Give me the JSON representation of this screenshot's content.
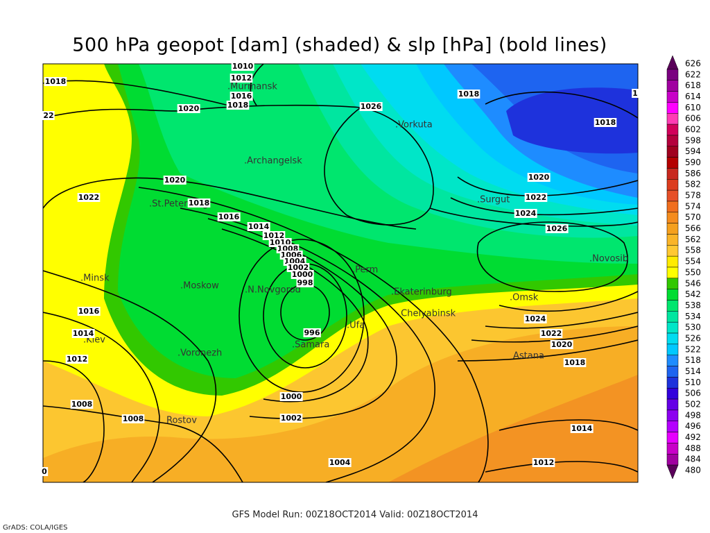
{
  "title": "500 hPa geopot [dam] (shaded) & slp [hPa] (bold lines)",
  "footer": {
    "run": "GFS Model Run: 00Z18OCT2014 Valid: 00Z18OCT2014",
    "credit": "GrADS: COLA/IGES"
  },
  "colorbar": {
    "labels": [
      626,
      622,
      618,
      614,
      610,
      606,
      602,
      598,
      594,
      590,
      586,
      582,
      578,
      574,
      570,
      566,
      562,
      558,
      554,
      550,
      546,
      542,
      538,
      534,
      530,
      526,
      522,
      518,
      514,
      510,
      506,
      502,
      498,
      496,
      492,
      488,
      484,
      480
    ],
    "colors": [
      "#5a005a",
      "#7a0080",
      "#a000a0",
      "#c800c8",
      "#ff00ff",
      "#ff3cb4",
      "#d2005a",
      "#b4003c",
      "#a0001e",
      "#b40000",
      "#c8281e",
      "#dc3c1e",
      "#e65028",
      "#f06e1e",
      "#f58c1e",
      "#f5a01e",
      "#fab428",
      "#ffc832",
      "#ffeb00",
      "#ffff00",
      "#32c800",
      "#00dc32",
      "#00e66e",
      "#00e6a0",
      "#00e6c8",
      "#00dcf0",
      "#00c8ff",
      "#1e8cff",
      "#1e64f0",
      "#1e32dc",
      "#3200dc",
      "#6400e6",
      "#8c00f0",
      "#b400ff",
      "#e600ff",
      "#c800c8",
      "#a000a0",
      "#5a005a"
    ]
  },
  "cities": [
    ".Murmansk",
    ".Archangelsk",
    ".Vorkuta",
    ".St.Peterburg",
    ".Surgut",
    ".Novosib",
    ".Minsk",
    ".Moskow",
    ".N.Novgorod",
    ".Perm",
    ".Ekaterinburg",
    ".Omsk",
    ".Chelyabinsk",
    ".Ufa",
    ".Kiev",
    ".Samara",
    ".Voronezh",
    "Astana",
    "Rostov"
  ],
  "contour_labels": [
    1010,
    1012,
    1016,
    1018,
    1018,
    22,
    1020,
    1026,
    1018,
    1,
    1018,
    1020,
    1022,
    1018,
    1016,
    1020,
    1022,
    1024,
    1026,
    1014,
    1012,
    1010,
    1008,
    1006,
    1004,
    1002,
    1000,
    998,
    996,
    1016,
    1014,
    1012,
    1024,
    1022,
    1020,
    1018,
    1000,
    1002,
    1008,
    1008,
    1004,
    1014,
    1012,
    0
  ]
}
